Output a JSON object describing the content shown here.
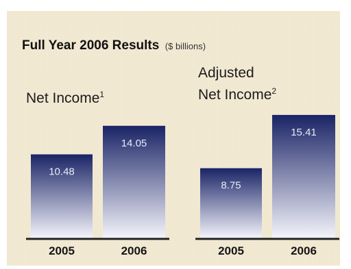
{
  "header": {
    "title": "Full Year 2006 Results",
    "unit": "($ billions)"
  },
  "chart_data": [
    {
      "type": "bar",
      "title": "Net Income",
      "title_footnote": "1",
      "categories": [
        "2005",
        "2006"
      ],
      "values": [
        10.48,
        14.05
      ],
      "value_labels": [
        "10.48",
        "14.05"
      ],
      "ylim": [
        0,
        16
      ],
      "grid": false
    },
    {
      "type": "bar",
      "title_line1": "Adjusted",
      "title": "Net Income",
      "title_footnote": "2",
      "categories": [
        "2005",
        "2006"
      ],
      "values": [
        8.75,
        15.41
      ],
      "value_labels": [
        "8.75",
        "15.41"
      ],
      "ylim": [
        0,
        16
      ],
      "grid": false
    }
  ],
  "colors": {
    "bar_top": "#1a2466",
    "bar_bottom": "#f4f4fb",
    "value_label": "#e9ecf8",
    "axis": "#222222"
  }
}
